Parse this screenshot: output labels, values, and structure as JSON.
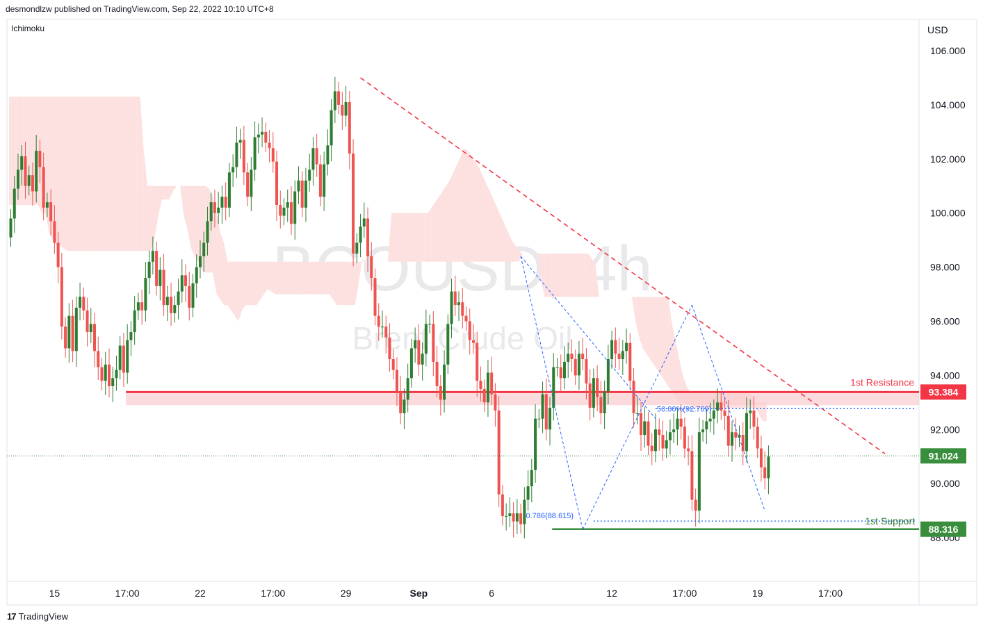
{
  "header": {
    "published": "desmondlzw published on TradingView.com, Sep 22, 2022 10:10 UTC+8"
  },
  "indicator": {
    "name": "Ichimoku"
  },
  "footer": {
    "brand": "TradingView",
    "logo_glyph": "17"
  },
  "watermark": {
    "symbol": "BCOUSD, 4h",
    "name": "Brent Crude Oil"
  },
  "colors": {
    "up": "#2e7d32",
    "down": "#ef5350",
    "resistance": "#f23645",
    "support": "#388e3c",
    "fib": "#2962ff",
    "cloud_red": "#fde0e0",
    "cloud_green": "#e3f1e5"
  },
  "chart_data": {
    "type": "candlestick",
    "symbol": "BCOUSD",
    "timeframe": "4h",
    "currency": "USD",
    "ylim": [
      86.5,
      107.5
    ],
    "y_ticks": [
      "106.000",
      "104.000",
      "102.000",
      "100.000",
      "98.000",
      "96.000",
      "94.000",
      "92.000",
      "90.000",
      "88.000"
    ],
    "x_ticks": [
      {
        "label": "15",
        "idx": 12
      },
      {
        "label": "17:00",
        "idx": 32
      },
      {
        "label": "22",
        "idx": 52
      },
      {
        "label": "17:00",
        "idx": 72
      },
      {
        "label": "29",
        "idx": 92
      },
      {
        "label": "Sep",
        "idx": 112
      },
      {
        "label": "6",
        "idx": 132
      },
      {
        "label": "12",
        "idx": 165
      },
      {
        "label": "17:00",
        "idx": 185
      },
      {
        "label": "19",
        "idx": 205
      },
      {
        "label": "17:00",
        "idx": 225
      }
    ],
    "closes": [
      99.8,
      100.9,
      101.6,
      102.1,
      101.0,
      101.4,
      100.8,
      102.3,
      101.7,
      100.2,
      100.4,
      99.7,
      98.9,
      98.0,
      95.8,
      95.0,
      96.2,
      94.9,
      96.5,
      96.9,
      96.4,
      95.6,
      95.9,
      94.9,
      94.3,
      93.8,
      94.4,
      93.6,
      93.9,
      94.2,
      95.1,
      94.1,
      95.3,
      95.6,
      96.4,
      96.7,
      96.4,
      97.6,
      98.2,
      98.6,
      97.3,
      97.9,
      96.6,
      96.9,
      96.3,
      96.6,
      97.1,
      97.7,
      97.3,
      96.5,
      97.4,
      98.0,
      98.4,
      98.9,
      99.7,
      100.4,
      100.0,
      100.2,
      100.6,
      100.2,
      101.5,
      101.7,
      102.6,
      102.7,
      101.5,
      100.6,
      101.6,
      102.8,
      102.9,
      103.0,
      102.6,
      102.4,
      101.9,
      100.3,
      99.9,
      100.2,
      100.4,
      99.6,
      100.8,
      101.2,
      100.2,
      101.2,
      101.6,
      102.4,
      101.8,
      100.6,
      101.8,
      102.5,
      103.8,
      104.5,
      104.0,
      103.6,
      104.1,
      102.2,
      98.5,
      98.9,
      99.5,
      99.8,
      98.4,
      97.6,
      96.2,
      95.8,
      95.8,
      95.4,
      94.6,
      94.2,
      93.4,
      92.6,
      93.1,
      93.9,
      95.0,
      95.3,
      94.4,
      94.8,
      95.9,
      95.9,
      94.5,
      93.6,
      93.1,
      94.4,
      95.9,
      97.1,
      96.6,
      96.7,
      96.2,
      96.0,
      95.3,
      95.2,
      93.8,
      93.5,
      93.0,
      94.1,
      93.3,
      92.7,
      89.6,
      88.8,
      88.8,
      88.9,
      88.6,
      88.9,
      88.5,
      89.4,
      89.9,
      90.5,
      92.4,
      92.4,
      93.3,
      92.0,
      92.8,
      94.3,
      94.3,
      93.9,
      94.5,
      94.8,
      94.6,
      94.0,
      94.8,
      94.6,
      93.7,
      92.8,
      93.9,
      93.2,
      92.6,
      93.4,
      94.6,
      95.3,
      94.8,
      94.6,
      94.9,
      95.2,
      93.8,
      92.6,
      92.6,
      91.8,
      92.3,
      91.4,
      91.2,
      92.0,
      91.8,
      91.3,
      91.6,
      91.9,
      92.0,
      92.4,
      92.1,
      91.3,
      91.2,
      89.4,
      89.0,
      91.9,
      92.0,
      92.3,
      92.4,
      92.7,
      93.0,
      92.7,
      92.5,
      91.4,
      91.9,
      91.7,
      91.8,
      91.2,
      92.6,
      92.7,
      92.1,
      91.3,
      90.6,
      90.2,
      91.0
    ],
    "ichimoku_cloud": {
      "start_idx": 0,
      "span_a_top": [
        104.3,
        104.3,
        104.3,
        104.3,
        104.3,
        104.3,
        104.3,
        104.3,
        104.3,
        104.3,
        104.3,
        104.3,
        104.3,
        104.3,
        104.3,
        104.3,
        104.3,
        104.3,
        104.3,
        104.3,
        104.3,
        104.3,
        104.3,
        104.3,
        104.3,
        104.3,
        104.3,
        104.3,
        104.3,
        104.3,
        104.3,
        104.3,
        104.3,
        104.3,
        104.3,
        104.3,
        104.3,
        102.3,
        101.0,
        101.0,
        101.0,
        101.0,
        101.0,
        101.0,
        101.0,
        101.0,
        101.0,
        101.0,
        101.0,
        101.0,
        101.0,
        101.0,
        101.0,
        101.0,
        101.0,
        100.9,
        100.6,
        100.0,
        99.3,
        98.9,
        98.2,
        98.2,
        98.2,
        98.2,
        98.2,
        98.2,
        98.2,
        98.2,
        98.2,
        98.2,
        98.2,
        98.2,
        98.2,
        98.2,
        98.2,
        98.2,
        98.2,
        98.2,
        98.2,
        98.2,
        98.2,
        98.2,
        98.2,
        98.2,
        98.2,
        98.2,
        98.2,
        98.2,
        98.2,
        98.2,
        98.2,
        98.2,
        98.2,
        98.2,
        98.2,
        98.2,
        98.2,
        98.2,
        98.2,
        98.2,
        98.2,
        98.2,
        98.2,
        98.2,
        98.2,
        100.0,
        100.0,
        100.0,
        100.0,
        100.0,
        100.0,
        100.0,
        100.0,
        100.0,
        100.0,
        100.0,
        100.2,
        100.4,
        100.6,
        100.8,
        101.0,
        101.2,
        101.5,
        101.8,
        102.1,
        102.4,
        102.3,
        102.1,
        101.9,
        101.7,
        101.4,
        101.1,
        100.8,
        100.5,
        100.2,
        99.9,
        99.6,
        99.3,
        99.0,
        98.8,
        98.6,
        98.5,
        98.5,
        98.5,
        98.5,
        98.5,
        98.5,
        98.5,
        98.5,
        98.5,
        98.5,
        98.5,
        98.5,
        98.5,
        98.5,
        98.5,
        98.5,
        98.5,
        98.5,
        98.5,
        98.3,
        98.1,
        96.9,
        96.9,
        96.9,
        96.9,
        96.9,
        96.9,
        96.9,
        96.9,
        96.9,
        96.9,
        96.9,
        96.9,
        96.9,
        96.9,
        96.9,
        96.9,
        96.9,
        96.9,
        96.9,
        96.9,
        95.9,
        95.3,
        94.6,
        94.0,
        93.6,
        93.4,
        93.4,
        93.4,
        93.4,
        93.4,
        93.4,
        93.4,
        93.4,
        93.4,
        93.4,
        93.4,
        93.4,
        93.4,
        93.4,
        93.4,
        93.4,
        93.4,
        93.2,
        93.0,
        93.0,
        93.0,
        93.0
      ],
      "span_bottom": [
        100.3,
        100.3,
        100.3,
        100.3,
        100.3,
        100.3,
        100.3,
        100.3,
        100.3,
        100.0,
        100.0,
        99.3,
        99.0,
        98.8,
        98.8,
        98.7,
        98.6,
        98.6,
        98.6,
        98.6,
        98.6,
        98.6,
        98.6,
        98.6,
        98.6,
        98.6,
        98.6,
        98.6,
        98.6,
        98.6,
        98.6,
        98.6,
        98.6,
        98.6,
        98.6,
        98.6,
        98.6,
        98.6,
        98.6,
        98.6,
        99.1,
        99.9,
        100.5,
        100.5,
        100.5,
        100.8,
        101.0,
        101.0,
        99.9,
        99.4,
        98.7,
        98.4,
        98.2,
        97.9,
        97.8,
        97.8,
        97.8,
        97.0,
        96.8,
        96.6,
        96.6,
        96.4,
        96.2,
        96.0,
        96.4,
        96.6,
        96.6,
        96.6,
        96.6,
        96.8,
        97.0,
        97.2,
        97.1,
        97.0,
        97.0,
        97.0,
        97.0,
        97.0,
        97.0,
        97.0,
        97.0,
        97.0,
        97.0,
        97.0,
        97.0,
        97.0,
        97.0,
        97.0,
        97.0,
        96.8,
        96.6,
        96.6,
        96.6,
        96.6,
        96.6,
        96.6,
        97.4,
        98.3,
        98.2,
        98.2,
        98.2,
        98.2,
        98.2,
        98.2,
        98.2,
        98.2,
        98.2,
        98.2,
        98.2,
        98.2,
        98.2,
        98.2,
        98.2,
        98.2,
        98.2,
        98.2,
        98.2,
        98.2,
        98.2,
        98.2,
        98.2,
        98.2,
        98.2,
        98.2,
        98.2,
        98.2,
        98.2,
        98.2,
        98.2,
        98.2,
        98.2,
        98.2,
        98.2,
        98.2,
        98.2,
        98.2,
        98.2,
        98.2,
        98.2,
        98.2,
        98.2,
        98.5,
        98.5,
        98.5,
        98.5,
        98.5,
        97.6,
        96.9,
        96.9,
        96.9,
        96.9,
        96.9,
        96.9,
        96.9,
        96.9,
        96.9,
        96.9,
        96.9,
        96.9,
        96.9,
        96.9,
        96.9,
        96.9,
        96.9,
        96.9,
        96.9,
        96.9,
        96.9,
        96.9,
        96.9,
        96.9,
        96.9,
        96.0,
        95.4,
        95.0,
        94.8,
        94.6,
        94.4,
        94.2,
        94.0,
        93.8,
        93.6,
        93.4,
        93.2,
        93.0,
        93.0,
        92.9,
        92.9,
        92.8,
        92.8,
        92.8,
        92.8,
        92.8,
        92.8,
        92.8,
        92.8,
        92.8,
        92.8,
        92.8,
        92.8,
        92.8,
        92.8,
        92.8,
        92.8,
        92.8,
        92.8,
        92.5,
        92.3,
        92.3
      ]
    },
    "resistance": {
      "label": "1st Resistance",
      "value": 93.384,
      "badge": "93.384",
      "from_idx": 32
    },
    "support": {
      "label": "1st Support",
      "value": 88.316,
      "badge": "88.316",
      "from_idx": 149
    },
    "current_price": {
      "value": 91.024,
      "badge": "91.024"
    },
    "fib_levels": [
      {
        "label": "50.00%(92.769)",
        "value": 92.769
      },
      {
        "label": "0.786(88.615)",
        "value": 88.615
      }
    ],
    "trendline": {
      "from": {
        "idx": 96,
        "value": 105.0
      },
      "to": {
        "idx": 240,
        "value": 91.1
      }
    }
  }
}
